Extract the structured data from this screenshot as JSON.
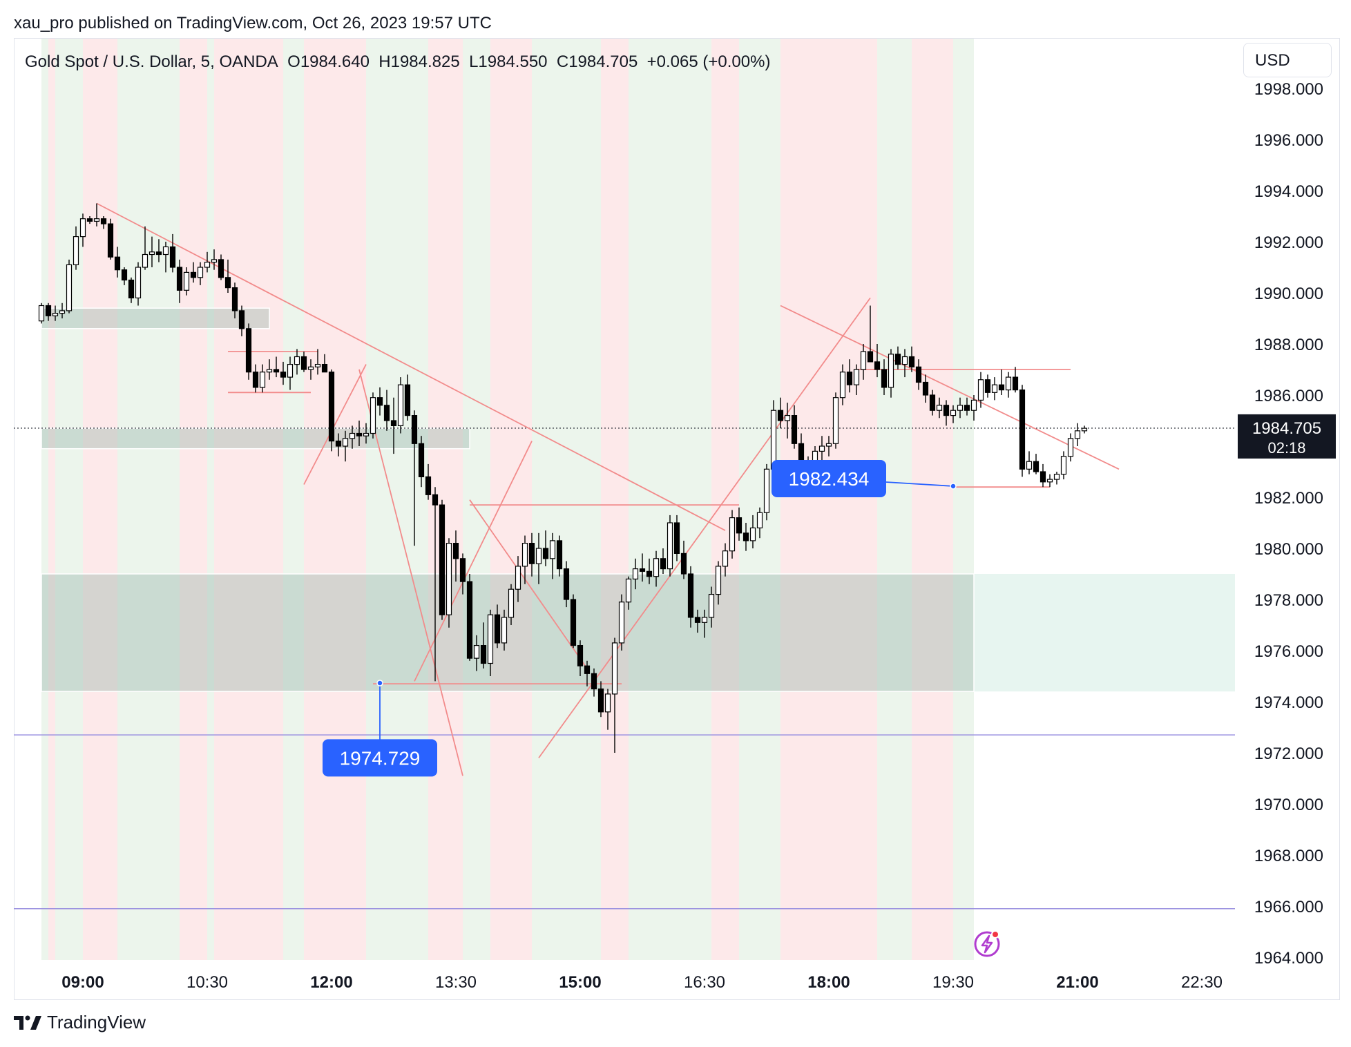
{
  "header": {
    "published_by": "xau_pro published on TradingView.com, Oct 26, 2023 19:57 UTC"
  },
  "legend": {
    "symbol": "Gold Spot / U.S. Dollar, 5, OANDA",
    "open": "O1984.640",
    "high": "H1984.825",
    "low": "L1984.550",
    "close": "C1984.705",
    "change": "+0.065 (+0.00%)"
  },
  "currency_button": "USD",
  "footer": {
    "brand": "TradingView"
  },
  "chart_data": {
    "type": "candlestick",
    "y_range": [
      1963.8,
      1999.0
    ],
    "y_ticks": [
      "1964.000",
      "1966.000",
      "1968.000",
      "1970.000",
      "1972.000",
      "1974.000",
      "1976.000",
      "1978.000",
      "1980.000",
      "1982.000",
      "1984.000",
      "1986.000",
      "1988.000",
      "1990.000",
      "1992.000",
      "1994.000",
      "1996.000",
      "1998.000"
    ],
    "x_ticks": [
      {
        "label": "09:00",
        "time": "09:00",
        "bold": true
      },
      {
        "label": "10:30",
        "time": "10:30",
        "bold": false
      },
      {
        "label": "12:00",
        "time": "12:00",
        "bold": true
      },
      {
        "label": "13:30",
        "time": "13:30",
        "bold": false
      },
      {
        "label": "15:00",
        "time": "15:00",
        "bold": true
      },
      {
        "label": "16:30",
        "time": "16:30",
        "bold": false
      },
      {
        "label": "18:00",
        "time": "18:00",
        "bold": true
      },
      {
        "label": "19:30",
        "time": "19:30",
        "bold": false
      },
      {
        "label": "21:00",
        "time": "21:00",
        "bold": true
      },
      {
        "label": "22:30",
        "time": "22:30",
        "bold": false
      }
    ],
    "last_price": {
      "label": "1984.705",
      "value": 1984.705,
      "countdown": "02:18"
    },
    "colors": {
      "bull_body": "#ffffff",
      "bear_body": "#000000",
      "wick": "#000000",
      "trendline": "#f28b8b",
      "zone": "rgba(120,200,170,0.18)",
      "zone_grey": "rgba(160,160,160,0.22)",
      "session_green": "#ecf5ec",
      "session_red": "#fde9ea",
      "hline": "#9a90e0",
      "callout": "#2962ff"
    },
    "session_bands": [
      {
        "start": "08:30",
        "end": "08:35",
        "color": "green"
      },
      {
        "start": "08:35",
        "end": "08:40",
        "color": "red"
      },
      {
        "start": "08:40",
        "end": "09:00",
        "color": "green"
      },
      {
        "start": "09:00",
        "end": "09:25",
        "color": "red"
      },
      {
        "start": "09:25",
        "end": "10:10",
        "color": "green"
      },
      {
        "start": "10:10",
        "end": "10:30",
        "color": "red"
      },
      {
        "start": "10:30",
        "end": "10:35",
        "color": "green"
      },
      {
        "start": "10:35",
        "end": "11:25",
        "color": "red"
      },
      {
        "start": "11:25",
        "end": "11:40",
        "color": "green"
      },
      {
        "start": "11:40",
        "end": "12:25",
        "color": "red"
      },
      {
        "start": "12:25",
        "end": "13:10",
        "color": "green"
      },
      {
        "start": "13:10",
        "end": "13:35",
        "color": "red"
      },
      {
        "start": "13:35",
        "end": "13:55",
        "color": "green"
      },
      {
        "start": "13:55",
        "end": "14:25",
        "color": "red"
      },
      {
        "start": "14:25",
        "end": "15:15",
        "color": "green"
      },
      {
        "start": "15:15",
        "end": "15:35",
        "color": "red"
      },
      {
        "start": "15:35",
        "end": "16:35",
        "color": "green"
      },
      {
        "start": "16:35",
        "end": "16:55",
        "color": "red"
      },
      {
        "start": "16:55",
        "end": "17:25",
        "color": "green"
      },
      {
        "start": "17:25",
        "end": "18:35",
        "color": "red"
      },
      {
        "start": "18:35",
        "end": "19:00",
        "color": "green"
      },
      {
        "start": "19:00",
        "end": "19:30",
        "color": "red"
      },
      {
        "start": "19:30",
        "end": "19:45",
        "color": "green"
      }
    ],
    "zones": [
      {
        "t1": "08:30",
        "t2": "11:15",
        "top": 1989.4,
        "bottom": 1988.6
      },
      {
        "t1": "08:30",
        "t2": "13:40",
        "top": 1984.7,
        "bottom": 1983.9
      },
      {
        "t1": "08:30",
        "t2": "23:10",
        "top": 1979.0,
        "bottom": 1974.4
      }
    ],
    "horizontal_lines": [
      1972.7,
      1965.9
    ],
    "trendlines": [
      [
        [
          "09:10",
          1993.5
        ],
        [
          "16:45",
          1980.7
        ]
      ],
      [
        [
          "17:25",
          1989.5
        ],
        [
          "21:30",
          1983.1
        ]
      ],
      [
        [
          "11:40",
          1982.5
        ],
        [
          "12:25",
          1987.2
        ]
      ],
      [
        [
          "12:20",
          1987.0
        ],
        [
          "13:35",
          1971.1
        ]
      ],
      [
        [
          "13:00",
          1974.8
        ],
        [
          "14:25",
          1984.2
        ]
      ],
      [
        [
          "13:40",
          1981.9
        ],
        [
          "15:05",
          1975.3
        ]
      ],
      [
        [
          "14:30",
          1971.8
        ],
        [
          "18:30",
          1989.8
        ]
      ],
      [
        [
          "10:45",
          1987.7
        ],
        [
          "11:50",
          1987.7
        ]
      ],
      [
        [
          "10:45",
          1986.1
        ],
        [
          "11:45",
          1986.1
        ]
      ],
      [
        [
          "13:40",
          1981.7
        ],
        [
          "16:55",
          1981.7
        ]
      ],
      [
        [
          "12:30",
          1974.7
        ],
        [
          "15:30",
          1974.7
        ]
      ],
      [
        [
          "18:20",
          1987.0
        ],
        [
          "20:55",
          1987.0
        ]
      ],
      [
        [
          "19:30",
          1982.4
        ],
        [
          "20:40",
          1982.4
        ]
      ]
    ],
    "callouts": [
      {
        "label": "1974.729",
        "anchor_time": "12:35",
        "anchor_price": 1974.729,
        "box_time": "12:35",
        "box_price": 1971.8
      },
      {
        "label": "1982.434",
        "anchor_time": "19:30",
        "anchor_price": 1982.434,
        "box_time": "18:00",
        "box_price": 1982.73
      }
    ],
    "candles": [
      [
        1988.9,
        1989.6,
        1988.8,
        1989.5
      ],
      [
        1989.5,
        1989.6,
        1988.9,
        1989.1
      ],
      [
        1989.1,
        1989.5,
        1988.9,
        1989.2
      ],
      [
        1989.2,
        1989.6,
        1989.0,
        1989.3
      ],
      [
        1989.3,
        1991.3,
        1989.2,
        1991.1
      ],
      [
        1991.1,
        1992.6,
        1990.9,
        1992.2
      ],
      [
        1992.2,
        1993.1,
        1991.8,
        1992.9
      ],
      [
        1992.9,
        1993.0,
        1992.7,
        1992.8
      ],
      [
        1992.8,
        1993.5,
        1992.6,
        1992.9
      ],
      [
        1992.9,
        1993.0,
        1992.5,
        1992.7
      ],
      [
        1992.7,
        1992.9,
        1991.3,
        1991.4
      ],
      [
        1991.4,
        1991.8,
        1990.6,
        1990.9
      ],
      [
        1990.9,
        1991.0,
        1990.3,
        1990.5
      ],
      [
        1990.5,
        1990.6,
        1989.6,
        1989.8
      ],
      [
        1989.8,
        1991.2,
        1989.5,
        1991.0
      ],
      [
        1991.0,
        1992.6,
        1990.9,
        1991.5
      ],
      [
        1991.5,
        1992.2,
        1991.0,
        1991.6
      ],
      [
        1991.6,
        1992.1,
        1991.2,
        1991.5
      ],
      [
        1991.5,
        1992.0,
        1990.8,
        1991.8
      ],
      [
        1991.8,
        1992.3,
        1990.8,
        1991.0
      ],
      [
        1991.0,
        1991.3,
        1989.6,
        1990.1
      ],
      [
        1990.1,
        1991.0,
        1989.9,
        1990.8
      ],
      [
        1990.8,
        1991.2,
        1990.4,
        1990.6
      ],
      [
        1990.6,
        1991.2,
        1990.3,
        1991.0
      ],
      [
        1991.0,
        1991.6,
        1990.8,
        1991.2
      ],
      [
        1991.2,
        1991.7,
        1990.9,
        1991.3
      ],
      [
        1991.3,
        1991.5,
        1990.5,
        1990.6
      ],
      [
        1990.6,
        1991.3,
        1990.0,
        1990.2
      ],
      [
        1990.2,
        1990.4,
        1989.0,
        1989.3
      ],
      [
        1989.3,
        1989.5,
        1988.3,
        1988.6
      ],
      [
        1988.6,
        1988.8,
        1986.6,
        1986.9
      ],
      [
        1986.9,
        1987.2,
        1986.1,
        1986.3
      ],
      [
        1986.3,
        1987.2,
        1986.1,
        1986.9
      ],
      [
        1986.9,
        1987.4,
        1986.6,
        1987.0
      ],
      [
        1987.0,
        1987.5,
        1986.7,
        1986.9
      ],
      [
        1986.9,
        1987.3,
        1986.4,
        1986.7
      ],
      [
        1986.7,
        1987.5,
        1986.2,
        1987.2
      ],
      [
        1987.2,
        1987.8,
        1986.8,
        1987.5
      ],
      [
        1987.5,
        1987.7,
        1986.9,
        1987.0
      ],
      [
        1987.0,
        1987.4,
        1986.6,
        1987.1
      ],
      [
        1987.1,
        1987.8,
        1986.8,
        1987.2
      ],
      [
        1987.2,
        1987.6,
        1986.9,
        1986.9
      ],
      [
        1986.9,
        1987.0,
        1983.8,
        1984.2
      ],
      [
        1984.2,
        1984.5,
        1983.6,
        1984.0
      ],
      [
        1984.0,
        1984.6,
        1983.4,
        1984.3
      ],
      [
        1984.3,
        1984.8,
        1983.9,
        1984.5
      ],
      [
        1984.5,
        1985.0,
        1984.0,
        1984.4
      ],
      [
        1984.4,
        1984.9,
        1984.1,
        1984.5
      ],
      [
        1984.5,
        1986.1,
        1984.3,
        1985.9
      ],
      [
        1985.9,
        1986.3,
        1985.2,
        1985.6
      ],
      [
        1985.6,
        1986.2,
        1984.6,
        1985.0
      ],
      [
        1985.0,
        1985.9,
        1983.7,
        1984.8
      ],
      [
        1984.8,
        1986.7,
        1984.5,
        1986.4
      ],
      [
        1986.4,
        1986.8,
        1985.0,
        1985.2
      ],
      [
        1985.2,
        1985.4,
        1980.1,
        1984.1
      ],
      [
        1984.1,
        1984.4,
        1982.4,
        1982.8
      ],
      [
        1982.8,
        1983.3,
        1981.9,
        1982.1
      ],
      [
        1982.1,
        1982.4,
        1974.8,
        1981.7
      ],
      [
        1981.7,
        1981.9,
        1977.2,
        1977.4
      ],
      [
        1977.4,
        1980.4,
        1976.9,
        1980.2
      ],
      [
        1980.2,
        1980.7,
        1978.7,
        1979.6
      ],
      [
        1979.6,
        1979.8,
        1978.2,
        1978.7
      ],
      [
        1978.7,
        1979.0,
        1975.6,
        1975.7
      ],
      [
        1975.7,
        1976.6,
        1975.2,
        1976.2
      ],
      [
        1976.2,
        1977.1,
        1975.3,
        1975.5
      ],
      [
        1975.5,
        1977.6,
        1975.0,
        1977.4
      ],
      [
        1977.4,
        1977.8,
        1976.1,
        1976.3
      ],
      [
        1976.3,
        1977.6,
        1976.0,
        1977.3
      ],
      [
        1977.3,
        1978.6,
        1977.0,
        1978.4
      ],
      [
        1978.4,
        1979.7,
        1977.9,
        1979.3
      ],
      [
        1979.3,
        1980.5,
        1978.6,
        1980.2
      ],
      [
        1980.2,
        1980.6,
        1978.9,
        1979.4
      ],
      [
        1979.4,
        1980.6,
        1978.6,
        1980.0
      ],
      [
        1980.0,
        1980.7,
        1979.3,
        1979.6
      ],
      [
        1979.6,
        1980.6,
        1978.8,
        1980.3
      ],
      [
        1980.3,
        1980.5,
        1978.9,
        1979.2
      ],
      [
        1979.2,
        1979.5,
        1977.7,
        1978.0
      ],
      [
        1978.0,
        1978.2,
        1976.1,
        1976.2
      ],
      [
        1976.2,
        1976.4,
        1975.0,
        1975.4
      ],
      [
        1975.4,
        1975.6,
        1974.6,
        1975.1
      ],
      [
        1975.1,
        1975.3,
        1974.2,
        1974.5
      ],
      [
        1974.5,
        1974.8,
        1973.4,
        1973.6
      ],
      [
        1973.6,
        1974.5,
        1972.9,
        1974.3
      ],
      [
        1974.3,
        1976.5,
        1972.0,
        1976.3
      ],
      [
        1976.3,
        1978.2,
        1976.0,
        1977.9
      ],
      [
        1977.9,
        1978.9,
        1977.6,
        1978.8
      ],
      [
        1978.8,
        1979.6,
        1978.4,
        1979.2
      ],
      [
        1979.2,
        1979.8,
        1978.7,
        1979.1
      ],
      [
        1979.1,
        1979.6,
        1978.6,
        1978.9
      ],
      [
        1978.9,
        1979.9,
        1978.5,
        1979.6
      ],
      [
        1979.6,
        1980.0,
        1979.0,
        1979.2
      ],
      [
        1979.2,
        1981.3,
        1978.9,
        1981.0
      ],
      [
        1981.0,
        1981.3,
        1979.5,
        1979.8
      ],
      [
        1979.8,
        1980.3,
        1978.8,
        1979.0
      ],
      [
        1979.0,
        1979.3,
        1976.9,
        1977.3
      ],
      [
        1977.3,
        1977.6,
        1976.7,
        1977.1
      ],
      [
        1977.1,
        1977.6,
        1976.5,
        1977.3
      ],
      [
        1977.3,
        1978.5,
        1976.9,
        1978.2
      ],
      [
        1978.2,
        1979.5,
        1977.8,
        1979.3
      ],
      [
        1979.3,
        1980.2,
        1978.9,
        1979.9
      ],
      [
        1979.9,
        1981.5,
        1979.6,
        1981.2
      ],
      [
        1981.2,
        1981.6,
        1980.3,
        1980.6
      ],
      [
        1980.6,
        1981.0,
        1979.9,
        1980.3
      ],
      [
        1980.3,
        1981.3,
        1980.0,
        1980.8
      ],
      [
        1980.8,
        1981.6,
        1980.4,
        1981.4
      ],
      [
        1981.4,
        1983.3,
        1981.1,
        1983.1
      ],
      [
        1983.1,
        1985.8,
        1982.9,
        1985.4
      ],
      [
        1985.4,
        1985.9,
        1984.7,
        1985.0
      ],
      [
        1985.0,
        1985.7,
        1984.3,
        1985.2
      ],
      [
        1985.2,
        1985.6,
        1983.9,
        1984.1
      ],
      [
        1984.1,
        1984.5,
        1982.9,
        1983.1
      ],
      [
        1983.1,
        1983.6,
        1982.4,
        1983.0
      ],
      [
        1983.0,
        1984.0,
        1982.7,
        1983.8
      ],
      [
        1983.8,
        1984.4,
        1983.3,
        1984.0
      ],
      [
        1984.0,
        1984.4,
        1983.6,
        1984.1
      ],
      [
        1984.1,
        1986.1,
        1983.9,
        1985.9
      ],
      [
        1985.9,
        1987.2,
        1985.6,
        1986.9
      ],
      [
        1986.9,
        1987.4,
        1986.1,
        1986.4
      ],
      [
        1986.4,
        1987.2,
        1986.0,
        1987.0
      ],
      [
        1987.0,
        1988.0,
        1986.6,
        1987.7
      ],
      [
        1987.7,
        1989.5,
        1987.4,
        1987.3
      ],
      [
        1987.3,
        1988.0,
        1986.7,
        1987.0
      ],
      [
        1987.0,
        1987.4,
        1986.0,
        1986.3
      ],
      [
        1986.3,
        1987.8,
        1985.9,
        1987.6
      ],
      [
        1987.6,
        1987.9,
        1987.0,
        1987.2
      ],
      [
        1987.2,
        1987.8,
        1986.7,
        1987.5
      ],
      [
        1987.5,
        1987.9,
        1986.9,
        1987.1
      ],
      [
        1987.1,
        1987.4,
        1986.2,
        1986.5
      ],
      [
        1986.5,
        1986.8,
        1985.7,
        1986.0
      ],
      [
        1986.0,
        1986.2,
        1985.2,
        1985.4
      ],
      [
        1985.4,
        1985.9,
        1985.1,
        1985.6
      ],
      [
        1985.6,
        1985.8,
        1984.8,
        1985.2
      ],
      [
        1985.2,
        1985.6,
        1984.9,
        1985.4
      ],
      [
        1985.4,
        1985.9,
        1985.1,
        1985.6
      ],
      [
        1985.6,
        1985.9,
        1985.2,
        1985.4
      ],
      [
        1985.4,
        1986.0,
        1985.0,
        1985.8
      ],
      [
        1985.8,
        1986.9,
        1985.5,
        1986.6
      ],
      [
        1986.6,
        1986.8,
        1985.9,
        1986.1
      ],
      [
        1986.1,
        1986.7,
        1985.8,
        1986.4
      ],
      [
        1986.4,
        1987.0,
        1986.0,
        1986.2
      ],
      [
        1986.2,
        1986.9,
        1985.9,
        1986.7
      ],
      [
        1986.7,
        1987.1,
        1986.1,
        1986.2
      ],
      [
        1986.2,
        1986.4,
        1982.8,
        1983.1
      ],
      [
        1983.1,
        1983.8,
        1982.9,
        1983.4
      ],
      [
        1983.4,
        1983.7,
        1982.9,
        1983.0
      ],
      [
        1983.0,
        1983.3,
        1982.4,
        1982.6
      ],
      [
        1982.6,
        1982.9,
        1982.4,
        1982.7
      ],
      [
        1982.7,
        1983.0,
        1982.5,
        1982.9
      ],
      [
        1982.9,
        1983.8,
        1982.7,
        1983.6
      ],
      [
        1983.6,
        1984.5,
        1983.4,
        1984.3
      ],
      [
        1984.3,
        1984.9,
        1984.0,
        1984.6
      ],
      [
        1984.6,
        1984.8,
        1984.5,
        1984.7
      ]
    ]
  }
}
